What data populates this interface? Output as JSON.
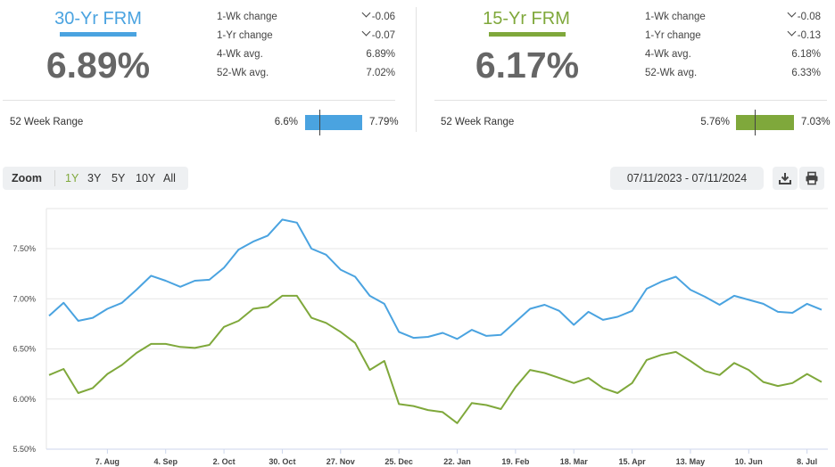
{
  "colors": {
    "rate30": "#4aa3e0",
    "rate15": "#7fa83b",
    "muted": "#666666"
  },
  "rate30": {
    "title": "30-Yr FRM",
    "value": "6.89%",
    "stats": [
      {
        "label": "1-Wk change",
        "value": "-0.06",
        "down": true
      },
      {
        "label": "1-Yr change",
        "value": "-0.07",
        "down": true
      },
      {
        "label": "4-Wk avg.",
        "value": "6.89%",
        "down": false
      },
      {
        "label": "52-Wk avg.",
        "value": "7.02%",
        "down": false
      }
    ],
    "range_label": "52 Week Range",
    "range_min": "6.6%",
    "range_max": "7.79%",
    "range_current": 6.89,
    "range_low": 6.6,
    "range_high": 7.79
  },
  "rate15": {
    "title": "15-Yr FRM",
    "value": "6.17%",
    "stats": [
      {
        "label": "1-Wk change",
        "value": "-0.08",
        "down": true
      },
      {
        "label": "1-Yr change",
        "value": "-0.13",
        "down": true
      },
      {
        "label": "4-Wk avg.",
        "value": "6.18%",
        "down": false
      },
      {
        "label": "52-Wk avg.",
        "value": "6.33%",
        "down": false
      }
    ],
    "range_label": "52 Week Range",
    "range_min": "5.76%",
    "range_max": "7.03%",
    "range_current": 6.17,
    "range_low": 5.76,
    "range_high": 7.03
  },
  "toolbar": {
    "zoom_label": "Zoom",
    "zoom_options": [
      "1Y",
      "3Y",
      "5Y",
      "10Y",
      "All"
    ],
    "active_zoom": "1Y",
    "date_range": "07/11/2023 - 07/11/2024",
    "download_icon": "download-icon",
    "print_icon": "print-icon"
  },
  "chart_data": {
    "type": "line",
    "title": "",
    "xlabel": "",
    "ylabel": "",
    "ylim": [
      5.5,
      7.9
    ],
    "yticks": [
      "5.50%",
      "6.00%",
      "6.50%",
      "7.00%",
      "7.50%"
    ],
    "ytick_values": [
      5.5,
      6.0,
      6.5,
      7.0,
      7.5
    ],
    "x_tick_labels": [
      "7. Aug",
      "4. Sep",
      "2. Oct",
      "30. Oct",
      "27. Nov",
      "25. Dec",
      "22. Jan",
      "19. Feb",
      "18. Mar",
      "15. Apr",
      "13. May",
      "10. Jun",
      "8. Jul"
    ],
    "x_tick_index": [
      4,
      8,
      12,
      16,
      20,
      24,
      28,
      32,
      36,
      40,
      44,
      48,
      52
    ],
    "grid": true,
    "legend": "none",
    "series": [
      {
        "key": "rate30",
        "values": [
          6.83,
          6.96,
          6.78,
          6.81,
          6.9,
          6.96,
          7.09,
          7.23,
          7.18,
          7.12,
          7.18,
          7.19,
          7.31,
          7.49,
          7.57,
          7.63,
          7.79,
          7.76,
          7.5,
          7.44,
          7.29,
          7.22,
          7.03,
          6.95,
          6.67,
          6.61,
          6.62,
          6.66,
          6.6,
          6.69,
          6.63,
          6.64,
          6.77,
          6.9,
          6.94,
          6.88,
          6.74,
          6.87,
          6.79,
          6.82,
          6.88,
          7.1,
          7.17,
          7.22,
          7.09,
          7.02,
          6.94,
          7.03,
          6.99,
          6.95,
          6.87,
          6.86,
          6.95,
          6.89
        ]
      },
      {
        "key": "rate15",
        "values": [
          6.24,
          6.3,
          6.06,
          6.11,
          6.25,
          6.34,
          6.46,
          6.55,
          6.55,
          6.52,
          6.51,
          6.54,
          6.72,
          6.78,
          6.9,
          6.92,
          7.03,
          7.03,
          6.81,
          6.76,
          6.67,
          6.56,
          6.29,
          6.38,
          5.95,
          5.93,
          5.89,
          5.87,
          5.76,
          5.96,
          5.94,
          5.9,
          6.12,
          6.29,
          6.26,
          6.21,
          6.16,
          6.21,
          6.11,
          6.06,
          6.16,
          6.39,
          6.44,
          6.47,
          6.38,
          6.28,
          6.24,
          6.36,
          6.29,
          6.17,
          6.13,
          6.16,
          6.25,
          6.17
        ]
      }
    ]
  }
}
